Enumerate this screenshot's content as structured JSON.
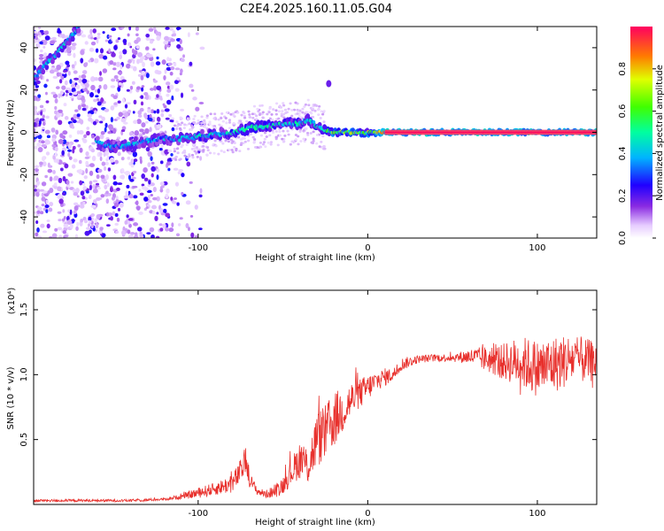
{
  "page": {
    "title": "C2E4.2025.160.11.05.G04"
  },
  "chart_data": [
    {
      "type": "heatmap",
      "title": "C2E4.2025.160.11.05.G04",
      "xlabel": "Height of straight line (km)",
      "ylabel": "Frequency (Hz)",
      "xlim": [
        -197,
        135
      ],
      "ylim": [
        -50,
        50
      ],
      "x_ticks": [
        -100,
        0,
        100
      ],
      "x_tick_labels": [
        "-100",
        "0",
        "100"
      ],
      "y_ticks": [
        -40,
        -20,
        0,
        20,
        40
      ],
      "y_tick_labels": [
        "-40",
        "-20",
        "0",
        "20",
        "40"
      ],
      "colorbar": {
        "label": "Normalized spectral amplitude",
        "range": [
          0,
          1
        ],
        "ticks": [
          0,
          0.2,
          0.4,
          0.6,
          0.8
        ],
        "tick_labels": [
          "0.0",
          "0.2",
          "0.4",
          "0.6",
          "0.8"
        ],
        "colors": [
          "#ffffff",
          "#c77dff",
          "#3a00ff",
          "#00c8ff",
          "#00ff66",
          "#d8ff00",
          "#ff6600",
          "#ff0055"
        ]
      },
      "ridge": {
        "description": "dominant Doppler ridge",
        "x": [
          -197,
          -190,
          -180,
          -170,
          -165,
          -160,
          -150,
          -140,
          -130,
          -120,
          -110,
          -100,
          -90,
          -80,
          -70,
          -60,
          -50,
          -40,
          -35,
          -30,
          -25,
          -20,
          -10,
          0,
          10,
          50,
          100,
          135
        ],
        "y": [
          25,
          32,
          40,
          50,
          null,
          -5,
          -7,
          -6,
          -4,
          -3,
          -3,
          -2,
          -1,
          0,
          2,
          3,
          4,
          4,
          6,
          3,
          1,
          0,
          0,
          0,
          0,
          0,
          0,
          0
        ]
      },
      "outlier_blob": {
        "x": -23,
        "y": 23
      },
      "grid": false
    },
    {
      "type": "line",
      "xlabel": "Height of straight line (km)",
      "ylabel": "SNR (10 * v/v)",
      "y_scale_note": "(x10⁴)",
      "xlim": [
        -197,
        135
      ],
      "ylim": [
        0,
        1.65
      ],
      "x_ticks": [
        -100,
        0,
        100
      ],
      "x_tick_labels": [
        "-100",
        "0",
        "100"
      ],
      "y_ticks": [
        0.5,
        1.0,
        1.5
      ],
      "y_tick_labels": [
        "0.5",
        "1.0",
        "1.5"
      ],
      "color": "#e8302c",
      "series": [
        {
          "x": [
            -197,
            -180,
            -160,
            -140,
            -120,
            -110,
            -100,
            -90,
            -80,
            -75,
            -72,
            -70,
            -65,
            -60,
            -55,
            -50,
            -45,
            -40,
            -35,
            -30,
            -25,
            -20,
            -15,
            -10,
            -5,
            0,
            5,
            10,
            15,
            20,
            30,
            40,
            50,
            60,
            70,
            80,
            90,
            100,
            110,
            120,
            135
          ],
          "y": [
            0.03,
            0.03,
            0.03,
            0.03,
            0.04,
            0.06,
            0.09,
            0.12,
            0.16,
            0.25,
            0.35,
            0.2,
            0.1,
            0.08,
            0.1,
            0.15,
            0.25,
            0.35,
            0.3,
            0.5,
            0.55,
            0.65,
            0.72,
            0.8,
            0.85,
            0.9,
            0.95,
            0.98,
            1.0,
            1.08,
            1.12,
            1.13,
            1.13,
            1.14,
            1.12,
            1.1,
            1.1,
            1.05,
            1.08,
            1.12,
            1.1
          ],
          "noise_amplitude": [
            0.01,
            0.01,
            0.01,
            0.01,
            0.01,
            0.02,
            0.04,
            0.05,
            0.07,
            0.1,
            0.1,
            0.06,
            0.03,
            0.03,
            0.05,
            0.07,
            0.1,
            0.15,
            0.15,
            0.22,
            0.22,
            0.22,
            0.18,
            0.15,
            0.12,
            0.1,
            0.08,
            0.07,
            0.05,
            0.05,
            0.03,
            0.03,
            0.03,
            0.06,
            0.1,
            0.14,
            0.2,
            0.22,
            0.22,
            0.2,
            0.15
          ]
        }
      ],
      "grid": false
    }
  ]
}
